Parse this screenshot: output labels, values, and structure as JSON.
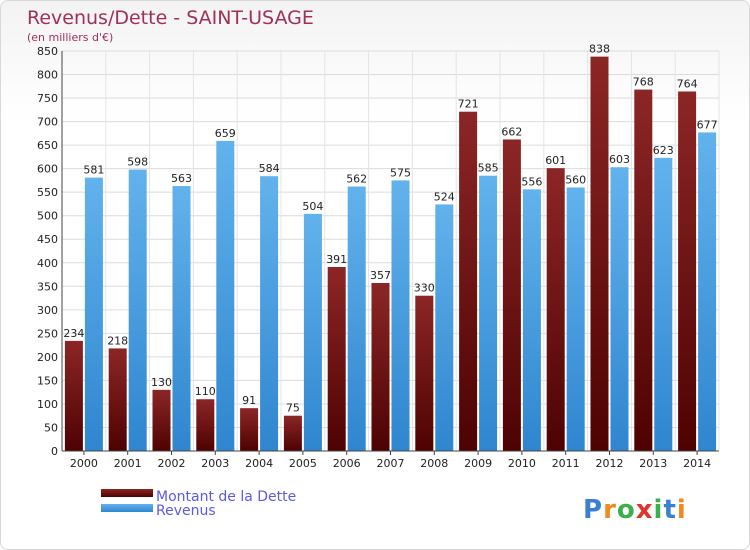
{
  "chart_data": {
    "type": "bar",
    "title": "Revenus/Dette - SAINT-USAGE",
    "subtitle": "(en milliers d'€)",
    "categories": [
      "2000",
      "2001",
      "2002",
      "2003",
      "2004",
      "2005",
      "2006",
      "2007",
      "2008",
      "2009",
      "2010",
      "2011",
      "2012",
      "2013",
      "2014"
    ],
    "series": [
      {
        "name": "Montant de la Dette",
        "values": [
          234,
          218,
          130,
          110,
          91,
          75,
          391,
          357,
          330,
          721,
          662,
          601,
          838,
          768,
          764
        ],
        "color": "#7a1414"
      },
      {
        "name": "Revenus",
        "values": [
          581,
          598,
          563,
          659,
          584,
          504,
          562,
          575,
          524,
          585,
          556,
          560,
          603,
          623,
          677
        ],
        "color": "#4aa3e6"
      }
    ],
    "ylim": [
      0,
      850
    ],
    "yticks": [
      0,
      50,
      100,
      150,
      200,
      250,
      300,
      350,
      400,
      450,
      500,
      550,
      600,
      650,
      700,
      750,
      800,
      850
    ],
    "grid": true,
    "legend_position": "bottom-left"
  },
  "logo": {
    "text": "Proxiti"
  }
}
